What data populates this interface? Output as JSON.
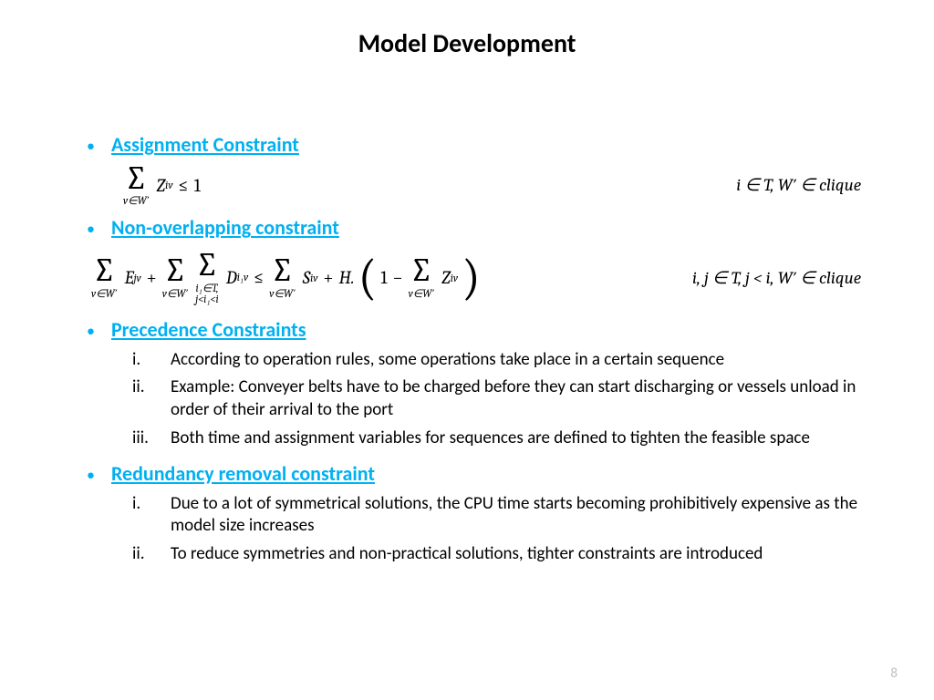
{
  "title": "Model Development",
  "colors": {
    "accent": "#00b0f0",
    "text": "#000000",
    "page_num": "#bfbfbf",
    "background": "#ffffff"
  },
  "typography": {
    "title_fontsize": 28,
    "heading_fontsize": 22,
    "body_fontsize": 19,
    "math_fontsize": 20
  },
  "sections": {
    "s1": {
      "heading": "Assignment Constraint"
    },
    "s2": {
      "heading": "Non-overlapping constraint"
    },
    "s3": {
      "heading": "Precedence Constraints",
      "items": {
        "i": {
          "num": "i.",
          "text": "According to operation rules, some operations take place in a certain sequence"
        },
        "ii": {
          "num": "ii.",
          "text": "Example: Conveyer belts have to be charged before they can start discharging or vessels unload in order of their arrival to the port"
        },
        "iii": {
          "num": "iii.",
          "text": "Both time and assignment variables for sequences are defined to tighten the feasible space"
        }
      }
    },
    "s4": {
      "heading": "Redundancy removal constraint",
      "items": {
        "i": {
          "num": "i.",
          "text": "Due to a lot of symmetrical solutions, the CPU time starts becoming prohibitively expensive as the model size increases"
        },
        "ii": {
          "num": "ii.",
          "text": "To reduce symmetries and non-practical solutions, tighter constraints are introduced"
        }
      }
    }
  },
  "equations": {
    "eq1": {
      "sum_sub": "v∈W′",
      "var": "Z",
      "var_sub": "iv",
      "rel": "≤",
      "rhs": "1",
      "condition": "i ∈ T, W′ ∈ clique"
    },
    "eq2": {
      "t1_sub": "v∈W′",
      "t1_var": "E",
      "t1_vsub": "jv",
      "plus1": "+",
      "t2a_sub": "v∈W′",
      "t2b_sub_line1": "i₁∈T,",
      "t2b_sub_line2": "j<i₁<i",
      "t2_var": "D",
      "t2_vsub": "i₁v",
      "rel": "≤",
      "t3_sub": "v∈W′",
      "t3_var": "S",
      "t3_vsub": "iv",
      "plus2": "+",
      "H": "H.",
      "one": "1",
      "minus": "−",
      "t4_sub": "v∈W′",
      "t4_var": "Z",
      "t4_vsub": "iv",
      "condition": "i, j ∈ T, j < i, W′ ∈ clique"
    }
  },
  "page_number": "8"
}
